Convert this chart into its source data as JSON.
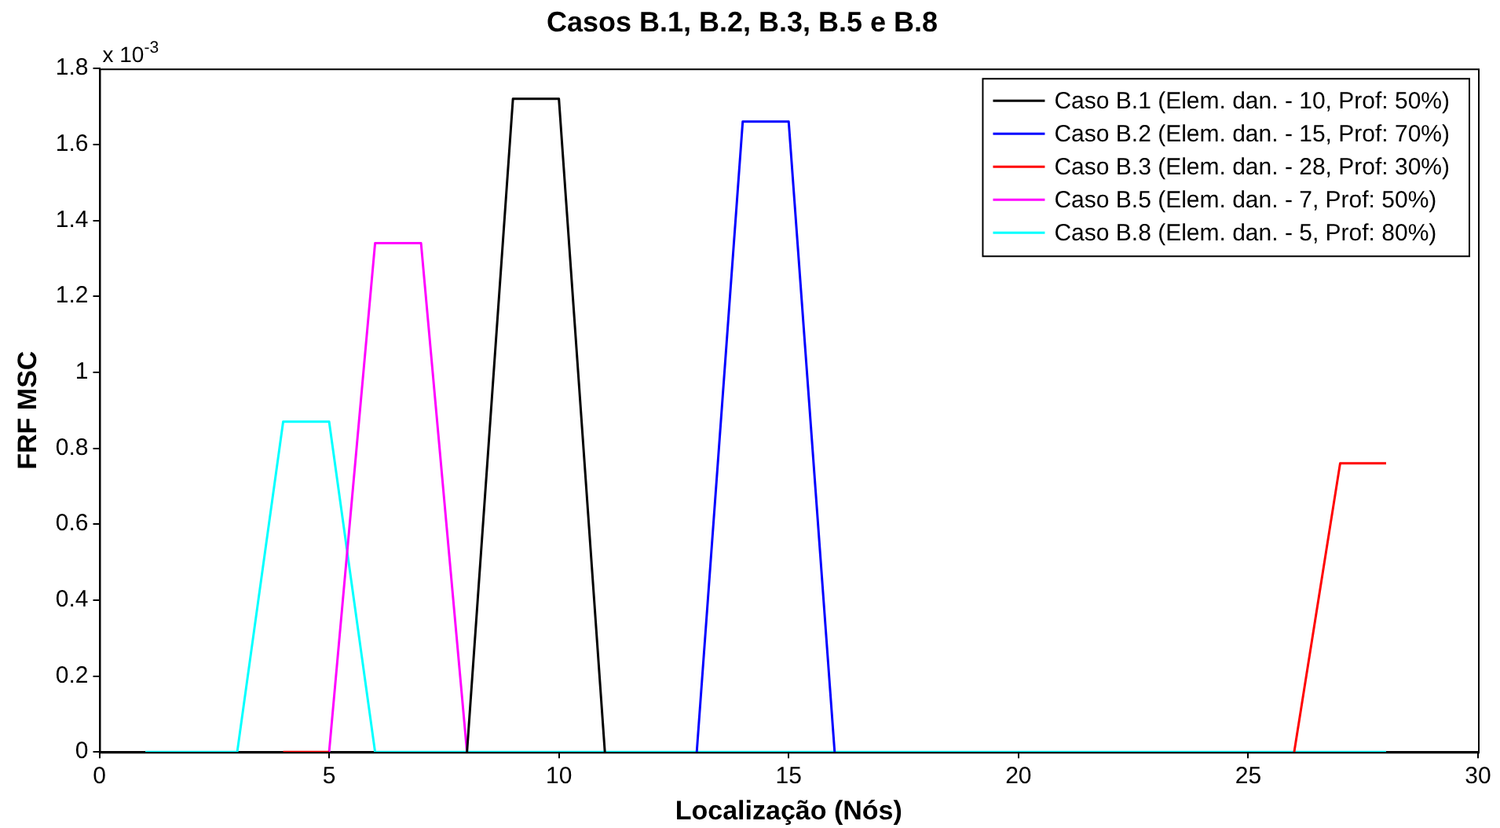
{
  "chart_data": {
    "type": "line",
    "title": "Casos B.1, B.2, B.3, B.5 e B.8",
    "xlabel": "Localização (Nós)",
    "ylabel": "FRF MSC",
    "annotations": [
      "x 10$^{-3}$"
    ],
    "x": [
      1,
      2,
      3,
      4,
      5,
      6,
      7,
      8,
      9,
      10,
      11,
      12,
      13,
      14,
      15,
      16,
      17,
      18,
      19,
      20,
      21,
      22,
      23,
      24,
      25,
      26,
      27,
      28
    ],
    "series": [
      {
        "name": "Caso B.1 (Elem. dan. - 10, Prof: 50%)",
        "color": "#000000",
        "values": [
          null,
          null,
          null,
          null,
          null,
          null,
          null,
          0,
          1.72,
          1.72,
          0,
          null,
          null,
          null,
          null,
          null,
          null,
          null,
          null,
          null,
          null,
          null,
          null,
          null,
          null,
          null,
          null,
          null
        ]
      },
      {
        "name": "Caso B.2 (Elem. dan. - 15, Prof: 70%)",
        "color": "#0000ff",
        "values": [
          null,
          null,
          null,
          null,
          null,
          null,
          null,
          null,
          null,
          null,
          null,
          null,
          0,
          1.66,
          1.66,
          0,
          null,
          null,
          null,
          null,
          null,
          null,
          null,
          null,
          null,
          null,
          null,
          null
        ]
      },
      {
        "name": "Caso B.3 (Elem. dan. - 28, Prof: 30%)",
        "color": "#ff0000",
        "values": [
          null,
          null,
          null,
          0,
          0,
          null,
          null,
          null,
          null,
          null,
          null,
          null,
          null,
          null,
          null,
          null,
          null,
          null,
          null,
          null,
          null,
          null,
          null,
          null,
          null,
          0,
          0.76,
          0.76
        ]
      },
      {
        "name": "Caso B.5 (Elem. dan. - 7, Prof: 50%)",
        "color": "#ff00ff",
        "values": [
          null,
          null,
          null,
          null,
          0,
          1.34,
          1.34,
          0,
          null,
          null,
          null,
          null,
          null,
          null,
          null,
          null,
          null,
          null,
          null,
          null,
          null,
          null,
          null,
          null,
          null,
          null,
          null,
          null
        ]
      },
      {
        "name": "Caso B.8 (Elem. dan. - 5, Prof: 80%)",
        "color": "#00ffff",
        "values": [
          0,
          0,
          0,
          0.87,
          0.87,
          0,
          0,
          0,
          0,
          0,
          0,
          0,
          0,
          0,
          0,
          0,
          0,
          0,
          0,
          0,
          0,
          0,
          0,
          0,
          0,
          0,
          0,
          0
        ]
      }
    ],
    "xlim": [
      0,
      30
    ],
    "xticks": [
      0,
      5,
      10,
      15,
      20,
      25,
      30
    ],
    "ylim": [
      0,
      1.8
    ],
    "yticks": [
      0,
      0.2,
      0.4,
      0.6,
      0.8,
      1,
      1.2,
      1.4,
      1.6,
      1.8
    ],
    "legend": "top right",
    "marker": "none",
    "line_style": "solid"
  }
}
